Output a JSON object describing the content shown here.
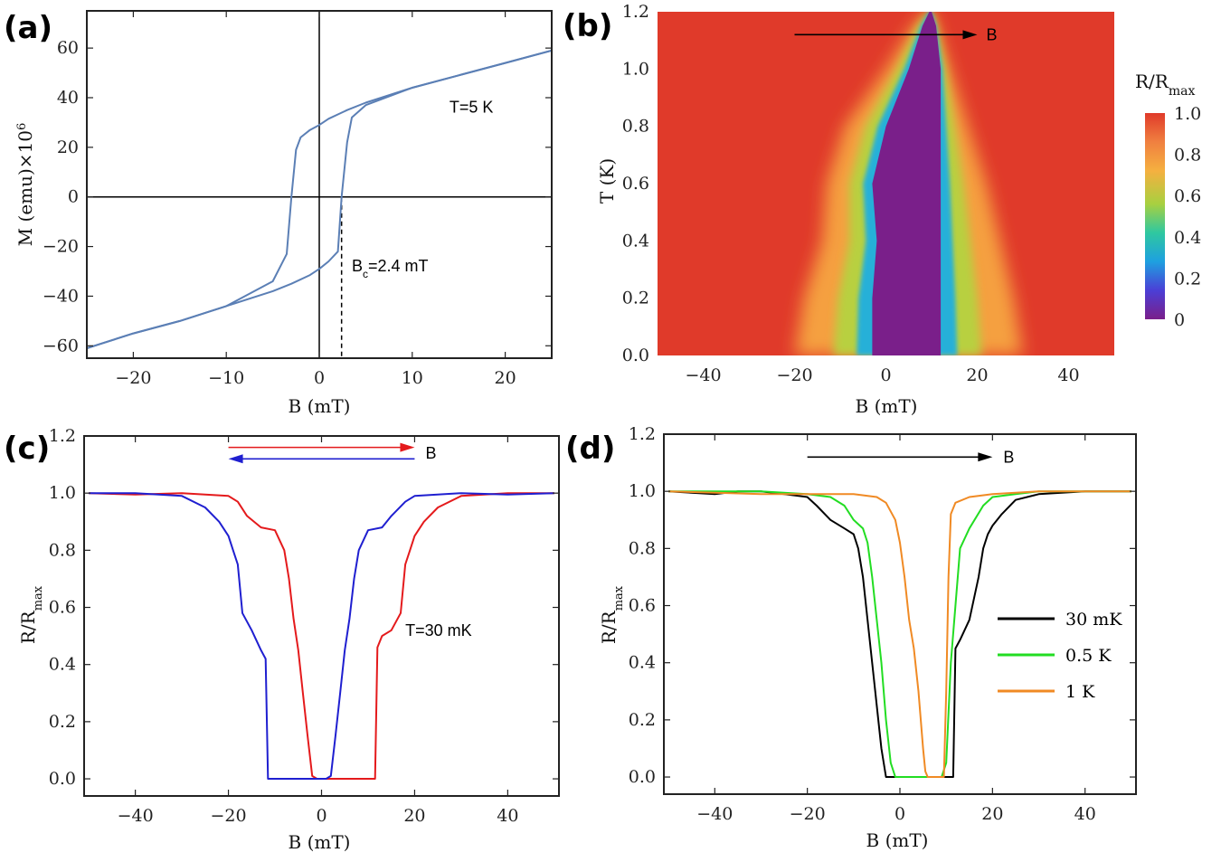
{
  "chart_data": [
    {
      "type": "line",
      "panel_label": "(a)",
      "xlabel": "B (mT)",
      "ylabel": "M (emu)×10",
      "ylabel_exponent": "6",
      "xlim": [
        -25,
        25
      ],
      "ylim": [
        -65,
        75
      ],
      "xticks": [
        "−20",
        "−10",
        "0",
        "10",
        "20"
      ],
      "xtick_values": [
        -20,
        -10,
        0,
        10,
        20
      ],
      "yticks": [
        "−60",
        "−40",
        "−20",
        "0",
        "20",
        "40",
        "60"
      ],
      "ytick_values": [
        -60,
        -40,
        -20,
        0,
        20,
        40,
        60
      ],
      "series": [
        {
          "name": "descending",
          "color": "#5b7fb5",
          "x": [
            25,
            20,
            15,
            10,
            5,
            3,
            1,
            0,
            -1,
            -2,
            -2.5,
            -3,
            -3.5,
            -5,
            -10,
            -15,
            -20,
            -25
          ],
          "y": [
            59,
            54,
            49,
            44,
            38,
            35,
            31.5,
            29,
            27,
            24,
            19,
            0,
            -23,
            -34,
            -44,
            -50,
            -55,
            -61
          ]
        },
        {
          "name": "ascending",
          "color": "#5b7fb5",
          "x": [
            -25,
            -20,
            -15,
            -10,
            -5,
            -3,
            -1,
            0,
            1,
            2,
            2.4,
            3,
            3.5,
            5,
            10,
            15,
            20,
            25
          ],
          "y": [
            -61,
            -55,
            -50,
            -44,
            -38,
            -35,
            -31.5,
            -29,
            -26,
            -22,
            0,
            22,
            32,
            37,
            44,
            49,
            54,
            59
          ]
        }
      ],
      "annotations": [
        {
          "text": "T=5 K",
          "x": 14,
          "y": 34
        },
        {
          "text": "B",
          "sub": "c",
          "rest": "=2.4 mT",
          "x": 3.5,
          "y": -30
        }
      ],
      "bc_marker": {
        "x": 2.4,
        "y_from": 0,
        "y_to": -65
      }
    },
    {
      "type": "heatmap",
      "panel_label": "(b)",
      "xlabel": "B (mT)",
      "ylabel": "T (K)",
      "xlim": [
        -50,
        50
      ],
      "ylim": [
        0,
        1.2
      ],
      "xticks": [
        "−40",
        "−20",
        "0",
        "20",
        "40"
      ],
      "xtick_values": [
        -40,
        -20,
        0,
        20,
        40
      ],
      "yticks": [
        "0.0",
        "0.2",
        "0.4",
        "0.6",
        "0.8",
        "1.0",
        "1.2"
      ],
      "ytick_values": [
        0,
        0.2,
        0.4,
        0.6,
        0.8,
        1.0,
        1.2
      ],
      "arrow_label": "B",
      "arrow_from": [
        -20,
        1.12
      ],
      "arrow_to": [
        20,
        1.12
      ],
      "colorbar": {
        "title": "R/R",
        "title_sub": "max",
        "ticks": [
          "0",
          "0.2",
          "0.4",
          "0.6",
          "0.8",
          "1.0"
        ],
        "tick_values": [
          0,
          0.2,
          0.4,
          0.6,
          0.8,
          1.0
        ],
        "colors": [
          "#7a1f8a",
          "#4b3fd6",
          "#1ea0e0",
          "#2fc8a0",
          "#a8d040",
          "#f5b040",
          "#f08040",
          "#e03a2a"
        ]
      },
      "boundary_T": [
        0.0,
        0.2,
        0.4,
        0.6,
        0.8,
        1.0,
        1.15,
        1.2
      ],
      "sc_left": [
        -3,
        -3,
        -2,
        -3,
        0,
        5,
        8,
        9.5
      ],
      "sc_right": [
        12,
        12,
        12,
        12,
        12,
        12,
        11,
        10
      ],
      "outer_left": [
        -20,
        -18,
        -14,
        -13,
        -9,
        0,
        6,
        9
      ],
      "outer_right": [
        30,
        28,
        25,
        22,
        18,
        14,
        11,
        10
      ]
    },
    {
      "type": "line",
      "panel_label": "(c)",
      "xlabel": "B (mT)",
      "ylabel": "R/R",
      "ylabel_sub": "max",
      "xlim": [
        -51,
        51
      ],
      "ylim": [
        -0.06,
        1.2
      ],
      "xticks": [
        "−40",
        "−20",
        "0",
        "20",
        "40"
      ],
      "xtick_values": [
        -40,
        -20,
        0,
        20,
        40
      ],
      "yticks": [
        "0.0",
        "0.2",
        "0.4",
        "0.6",
        "0.8",
        "1.0",
        "1.2"
      ],
      "ytick_values": [
        0,
        0.2,
        0.4,
        0.6,
        0.8,
        1.0,
        1.2
      ],
      "annotation": "T=30 mK",
      "annotation_pos": [
        18,
        0.5
      ],
      "arrow_label": "B",
      "arrows": [
        {
          "color": "#e41a1c",
          "from": -20,
          "to": 0,
          "y": 1.16
        },
        {
          "color": "#1f1fd0",
          "from": 0,
          "to": -20,
          "y": 1.12
        }
      ],
      "series": [
        {
          "name": "sweep up",
          "color": "#e41a1c",
          "x": [
            -50,
            -40,
            -30,
            -20,
            -18,
            -16,
            -13,
            -10,
            -8,
            -7,
            -6,
            -5,
            -4,
            -3,
            -2,
            -1,
            0,
            5,
            10,
            11.5,
            12,
            13,
            15,
            17,
            18,
            19,
            20,
            22,
            25,
            30,
            40,
            50
          ],
          "y": [
            1.0,
            0.995,
            1.0,
            0.99,
            0.97,
            0.92,
            0.88,
            0.87,
            0.8,
            0.7,
            0.56,
            0.45,
            0.3,
            0.15,
            0.01,
            0.0,
            0.0,
            0.0,
            0.0,
            0.0,
            0.46,
            0.5,
            0.52,
            0.58,
            0.75,
            0.8,
            0.85,
            0.9,
            0.95,
            0.99,
            1.0,
            1.0
          ]
        },
        {
          "name": "sweep down",
          "color": "#1f1fd0",
          "x": [
            50,
            40,
            30,
            20,
            18,
            15,
            13,
            10,
            8,
            7,
            6,
            5,
            4,
            3,
            2,
            1,
            0,
            -5,
            -10,
            -11.5,
            -12,
            -13,
            -15,
            -17,
            -18,
            -19,
            -20,
            -22,
            -25,
            -30,
            -40,
            -50
          ],
          "y": [
            1.0,
            0.995,
            1.0,
            0.99,
            0.97,
            0.92,
            0.88,
            0.87,
            0.8,
            0.7,
            0.56,
            0.45,
            0.3,
            0.15,
            0.01,
            0.0,
            0.0,
            0.0,
            0.0,
            0.0,
            0.42,
            0.45,
            0.52,
            0.58,
            0.75,
            0.8,
            0.85,
            0.9,
            0.95,
            0.99,
            1.0,
            1.0
          ]
        }
      ]
    },
    {
      "type": "line",
      "panel_label": "(d)",
      "xlabel": "B (mT)",
      "ylabel": "R/R",
      "ylabel_sub": "max",
      "xlim": [
        -51,
        51
      ],
      "ylim": [
        -0.06,
        1.2
      ],
      "xticks": [
        "−40",
        "−20",
        "0",
        "20",
        "40"
      ],
      "xtick_values": [
        -40,
        -20,
        0,
        20,
        40
      ],
      "yticks": [
        "0.0",
        "0.2",
        "0.4",
        "0.6",
        "0.8",
        "1.0",
        "1.2"
      ],
      "ytick_values": [
        0,
        0.2,
        0.4,
        0.6,
        0.8,
        1.0,
        1.2
      ],
      "arrow_label": "B",
      "arrow": {
        "from": -20,
        "to": 20,
        "y": 1.12
      },
      "legend_position": "center-right",
      "series": [
        {
          "name": "30 mK",
          "color": "#000000",
          "x": [
            -50,
            -40,
            -35,
            -30,
            -25,
            -20,
            -18,
            -15,
            -12,
            -10,
            -9,
            -8,
            -7,
            -6,
            -5,
            -4,
            -3,
            -2,
            0,
            5,
            10,
            11.5,
            12,
            13,
            15,
            17,
            18,
            19,
            20,
            22,
            25,
            30,
            40,
            50
          ],
          "y": [
            1.0,
            0.99,
            1.0,
            1.0,
            0.99,
            0.98,
            0.95,
            0.9,
            0.87,
            0.85,
            0.8,
            0.7,
            0.55,
            0.4,
            0.25,
            0.1,
            0.0,
            0.0,
            0.0,
            0.0,
            0.0,
            0.0,
            0.45,
            0.48,
            0.55,
            0.7,
            0.8,
            0.85,
            0.88,
            0.92,
            0.97,
            0.99,
            1.0,
            1.0
          ]
        },
        {
          "name": "0.5 K",
          "color": "#22dd22",
          "x": [
            -50,
            -30,
            -20,
            -15,
            -12,
            -10,
            -8,
            -7,
            -6,
            -5,
            -4,
            -3,
            -2,
            -1,
            0,
            5,
            9,
            10,
            11,
            12,
            13,
            15,
            18,
            20,
            25,
            30,
            40,
            50
          ],
          "y": [
            1.0,
            1.0,
            0.99,
            0.98,
            0.95,
            0.9,
            0.87,
            0.82,
            0.7,
            0.55,
            0.4,
            0.2,
            0.05,
            0.0,
            0.0,
            0.0,
            0.0,
            0.05,
            0.4,
            0.6,
            0.8,
            0.87,
            0.95,
            0.98,
            0.99,
            1.0,
            1.0,
            1.0
          ]
        },
        {
          "name": "1 K",
          "color": "#f08a24",
          "x": [
            -50,
            -30,
            -20,
            -10,
            -5,
            -3,
            -1,
            0,
            1,
            2,
            3,
            4,
            5,
            5.5,
            6,
            8,
            9.5,
            10,
            10.5,
            11,
            12,
            15,
            20,
            30,
            40,
            50
          ],
          "y": [
            1.0,
            0.99,
            0.99,
            0.99,
            0.98,
            0.96,
            0.9,
            0.82,
            0.7,
            0.55,
            0.45,
            0.3,
            0.1,
            0.02,
            0.0,
            0.0,
            0.0,
            0.3,
            0.7,
            0.92,
            0.96,
            0.98,
            0.99,
            1.0,
            1.0,
            1.0
          ]
        }
      ]
    }
  ]
}
